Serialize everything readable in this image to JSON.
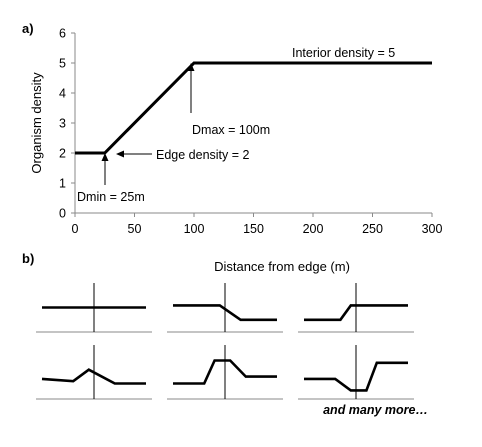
{
  "chart_data": [
    {
      "type": "line",
      "panel_label": "a)",
      "xlabel": "Distance from edge (m)",
      "ylabel": "Organism density",
      "xlim": [
        0,
        300
      ],
      "ylim": [
        0,
        6
      ],
      "x_ticks": [
        "0",
        "50",
        "100",
        "150",
        "200",
        "250",
        "300"
      ],
      "y_ticks": [
        "0",
        "1",
        "2",
        "3",
        "4",
        "5",
        "6"
      ],
      "series": [
        {
          "x": [
            0,
            25,
            100,
            300
          ],
          "y": [
            2,
            2,
            5,
            5
          ]
        }
      ],
      "annotations": {
        "interior": "Interior density = 5",
        "dmax": "Dmax = 100m",
        "edge": "Edge density = 2",
        "dmin": "Dmin = 25m"
      },
      "grid": false
    },
    {
      "type": "line",
      "panel_label": "b)",
      "panels": [
        {
          "points": [
            [
              0,
              0.5
            ],
            [
              1,
              0.5
            ]
          ]
        },
        {
          "points": [
            [
              0,
              0.55
            ],
            [
              0.45,
              0.55
            ],
            [
              0.65,
              0.2
            ],
            [
              1,
              0.2
            ]
          ]
        },
        {
          "points": [
            [
              0,
              0.2
            ],
            [
              0.35,
              0.2
            ],
            [
              0.45,
              0.55
            ],
            [
              1,
              0.55
            ]
          ]
        },
        {
          "points": [
            [
              0,
              0.35
            ],
            [
              0.3,
              0.3
            ],
            [
              0.45,
              0.55
            ],
            [
              0.7,
              0.25
            ],
            [
              1,
              0.25
            ]
          ]
        },
        {
          "points": [
            [
              0,
              0.25
            ],
            [
              0.3,
              0.25
            ],
            [
              0.4,
              0.75
            ],
            [
              0.55,
              0.75
            ],
            [
              0.7,
              0.4
            ],
            [
              1,
              0.4
            ]
          ]
        },
        {
          "points": [
            [
              0,
              0.35
            ],
            [
              0.3,
              0.35
            ],
            [
              0.45,
              0.1
            ],
            [
              0.6,
              0.1
            ],
            [
              0.7,
              0.7
            ],
            [
              1,
              0.7
            ]
          ]
        }
      ],
      "footer": "and many more…"
    }
  ]
}
